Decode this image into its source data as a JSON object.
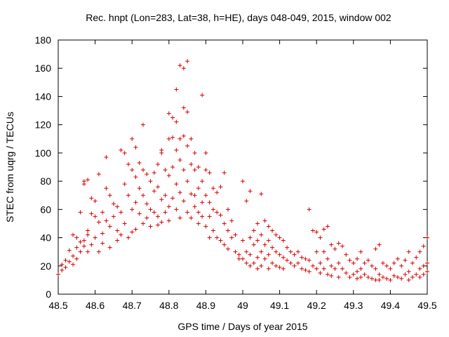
{
  "chart_data": {
    "type": "scatter",
    "title": "Rec. hnpt (Lon=283, Lat=38, h=HE), days 048-049, 2015, window 002",
    "xlabel": "GPS time / Days of year 2015",
    "ylabel": "STEC from uqrg / TECUs",
    "xlim": [
      48.5,
      49.5
    ],
    "ylim": [
      0,
      180
    ],
    "xticks": [
      "48.5",
      "48.6",
      "48.7",
      "48.8",
      "48.9",
      "49",
      "49.1",
      "49.2",
      "49.3",
      "49.4",
      "49.5"
    ],
    "yticks": [
      "0",
      "20",
      "40",
      "60",
      "80",
      "100",
      "120",
      "140",
      "160",
      "180"
    ],
    "marker": "+",
    "color": "#d40000",
    "series": [
      {
        "name": "STEC",
        "points": [
          [
            48.5,
            14
          ],
          [
            48.51,
            17
          ],
          [
            48.51,
            21
          ],
          [
            48.52,
            19
          ],
          [
            48.52,
            24
          ],
          [
            48.53,
            31
          ],
          [
            48.53,
            23
          ],
          [
            48.54,
            27
          ],
          [
            48.54,
            42
          ],
          [
            48.54,
            21
          ],
          [
            48.55,
            25
          ],
          [
            48.55,
            40
          ],
          [
            48.55,
            33
          ],
          [
            48.56,
            58
          ],
          [
            48.56,
            30
          ],
          [
            48.56,
            37
          ],
          [
            48.57,
            78
          ],
          [
            48.57,
            80
          ],
          [
            48.57,
            38
          ],
          [
            48.57,
            34
          ],
          [
            48.58,
            81
          ],
          [
            48.58,
            45
          ],
          [
            48.58,
            42
          ],
          [
            48.58,
            30
          ],
          [
            48.59,
            57
          ],
          [
            48.59,
            68
          ],
          [
            48.59,
            35
          ],
          [
            48.6,
            66
          ],
          [
            48.6,
            55
          ],
          [
            48.6,
            40
          ],
          [
            48.61,
            85
          ],
          [
            48.61,
            51
          ],
          [
            48.61,
            30
          ],
          [
            48.62,
            58
          ],
          [
            48.62,
            43
          ],
          [
            48.62,
            36
          ],
          [
            48.63,
            97
          ],
          [
            48.63,
            75
          ],
          [
            48.63,
            52
          ],
          [
            48.64,
            70
          ],
          [
            48.64,
            48
          ],
          [
            48.64,
            33
          ],
          [
            48.65,
            64
          ],
          [
            48.65,
            55
          ],
          [
            48.66,
            62
          ],
          [
            48.66,
            45
          ],
          [
            48.66,
            38
          ],
          [
            48.67,
            102
          ],
          [
            48.67,
            58
          ],
          [
            48.67,
            42
          ],
          [
            48.68,
            100
          ],
          [
            48.68,
            78
          ],
          [
            48.68,
            50
          ],
          [
            48.69,
            92
          ],
          [
            48.69,
            70
          ],
          [
            48.69,
            40
          ],
          [
            48.7,
            110
          ],
          [
            48.7,
            88
          ],
          [
            48.7,
            60
          ],
          [
            48.7,
            44
          ],
          [
            48.71,
            104
          ],
          [
            48.71,
            83
          ],
          [
            48.71,
            65
          ],
          [
            48.71,
            46
          ],
          [
            48.72,
            93
          ],
          [
            48.72,
            75
          ],
          [
            48.72,
            57
          ],
          [
            48.73,
            120
          ],
          [
            48.73,
            88
          ],
          [
            48.73,
            70
          ],
          [
            48.73,
            50
          ],
          [
            48.74,
            85
          ],
          [
            48.74,
            64
          ],
          [
            48.74,
            54
          ],
          [
            48.75,
            80
          ],
          [
            48.75,
            60
          ],
          [
            48.75,
            48
          ],
          [
            48.76,
            86
          ],
          [
            48.76,
            73
          ],
          [
            48.76,
            58
          ],
          [
            48.77,
            92
          ],
          [
            48.77,
            76
          ],
          [
            48.77,
            55
          ],
          [
            48.77,
            49
          ],
          [
            48.78,
            102
          ],
          [
            48.78,
            100
          ],
          [
            48.78,
            67
          ],
          [
            48.78,
            51
          ],
          [
            48.79,
            88
          ],
          [
            48.79,
            70
          ],
          [
            48.79,
            58
          ],
          [
            48.8,
            128
          ],
          [
            48.8,
            110
          ],
          [
            48.8,
            84
          ],
          [
            48.8,
            62
          ],
          [
            48.8,
            52
          ],
          [
            48.81,
            125
          ],
          [
            48.81,
            111
          ],
          [
            48.81,
            90
          ],
          [
            48.81,
            68
          ],
          [
            48.82,
            145
          ],
          [
            48.82,
            122
          ],
          [
            48.82,
            102
          ],
          [
            48.82,
            78
          ],
          [
            48.82,
            60
          ],
          [
            48.83,
            162
          ],
          [
            48.83,
            110
          ],
          [
            48.83,
            95
          ],
          [
            48.83,
            72
          ],
          [
            48.83,
            54
          ],
          [
            48.84,
            160
          ],
          [
            48.84,
            132
          ],
          [
            48.84,
            112
          ],
          [
            48.84,
            88
          ],
          [
            48.84,
            66
          ],
          [
            48.85,
            165
          ],
          [
            48.85,
            129
          ],
          [
            48.85,
            105
          ],
          [
            48.85,
            80
          ],
          [
            48.85,
            58
          ],
          [
            48.86,
            110
          ],
          [
            48.86,
            92
          ],
          [
            48.86,
            71
          ],
          [
            48.86,
            54
          ],
          [
            48.87,
            100
          ],
          [
            48.87,
            88
          ],
          [
            48.87,
            70
          ],
          [
            48.87,
            62
          ],
          [
            48.88,
            90
          ],
          [
            48.88,
            75
          ],
          [
            48.88,
            58
          ],
          [
            48.88,
            50
          ],
          [
            48.89,
            141
          ],
          [
            48.89,
            80
          ],
          [
            48.89,
            65
          ],
          [
            48.89,
            55
          ],
          [
            48.9,
            100
          ],
          [
            48.9,
            88
          ],
          [
            48.9,
            70
          ],
          [
            48.9,
            48
          ],
          [
            48.91,
            86
          ],
          [
            48.91,
            65
          ],
          [
            48.91,
            55
          ],
          [
            48.91,
            40
          ],
          [
            48.92,
            75
          ],
          [
            48.92,
            60
          ],
          [
            48.92,
            45
          ],
          [
            48.93,
            72
          ],
          [
            48.93,
            58
          ],
          [
            48.93,
            40
          ],
          [
            48.94,
            76
          ],
          [
            48.94,
            56
          ],
          [
            48.94,
            38
          ],
          [
            48.95,
            86
          ],
          [
            48.95,
            50
          ],
          [
            48.95,
            35
          ],
          [
            48.96,
            60
          ],
          [
            48.96,
            45
          ],
          [
            48.96,
            32
          ],
          [
            48.97,
            52
          ],
          [
            48.97,
            40
          ],
          [
            48.98,
            42
          ],
          [
            48.98,
            30
          ],
          [
            48.99,
            28
          ],
          [
            48.99,
            25
          ],
          [
            49.0,
            80
          ],
          [
            49.0,
            38
          ],
          [
            49.0,
            25
          ],
          [
            49.01,
            66
          ],
          [
            49.01,
            30
          ],
          [
            49.01,
            22
          ],
          [
            49.02,
            73
          ],
          [
            49.02,
            40
          ],
          [
            49.02,
            28
          ],
          [
            49.02,
            20
          ],
          [
            49.03,
            45
          ],
          [
            49.03,
            35
          ],
          [
            49.03,
            22
          ],
          [
            49.04,
            50
          ],
          [
            49.04,
            38
          ],
          [
            49.04,
            26
          ],
          [
            49.04,
            18
          ],
          [
            49.05,
            71
          ],
          [
            49.05,
            42
          ],
          [
            49.05,
            30
          ],
          [
            49.05,
            20
          ],
          [
            49.06,
            52
          ],
          [
            49.06,
            35
          ],
          [
            49.06,
            25
          ],
          [
            49.07,
            48
          ],
          [
            49.07,
            38
          ],
          [
            49.07,
            28
          ],
          [
            49.07,
            18
          ],
          [
            49.08,
            45
          ],
          [
            49.08,
            33
          ],
          [
            49.08,
            22
          ],
          [
            49.09,
            42
          ],
          [
            49.09,
            30
          ],
          [
            49.09,
            20
          ],
          [
            49.1,
            40
          ],
          [
            49.1,
            28
          ],
          [
            49.1,
            19
          ],
          [
            49.11,
            38
          ],
          [
            49.11,
            26
          ],
          [
            49.11,
            18
          ],
          [
            49.12,
            33
          ],
          [
            49.12,
            24
          ],
          [
            49.13,
            30
          ],
          [
            49.13,
            22
          ],
          [
            49.14,
            28
          ],
          [
            49.14,
            20
          ],
          [
            49.15,
            30
          ],
          [
            49.15,
            22
          ],
          [
            49.16,
            26
          ],
          [
            49.16,
            18
          ],
          [
            49.17,
            25
          ],
          [
            49.17,
            17
          ],
          [
            49.18,
            60
          ],
          [
            49.18,
            24
          ],
          [
            49.18,
            16
          ],
          [
            49.19,
            45
          ],
          [
            49.19,
            20
          ],
          [
            49.2,
            44
          ],
          [
            49.2,
            30
          ],
          [
            49.2,
            18
          ],
          [
            49.21,
            40
          ],
          [
            49.21,
            22
          ],
          [
            49.21,
            15
          ],
          [
            49.22,
            46
          ],
          [
            49.22,
            30
          ],
          [
            49.22,
            18
          ],
          [
            49.23,
            48
          ],
          [
            49.23,
            25
          ],
          [
            49.23,
            14
          ],
          [
            49.24,
            35
          ],
          [
            49.24,
            20
          ],
          [
            49.24,
            13
          ],
          [
            49.25,
            32
          ],
          [
            49.25,
            18
          ],
          [
            49.26,
            36
          ],
          [
            49.26,
            22
          ],
          [
            49.26,
            12
          ],
          [
            49.27,
            34
          ],
          [
            49.27,
            18
          ],
          [
            49.28,
            28
          ],
          [
            49.28,
            15
          ],
          [
            49.29,
            24
          ],
          [
            49.29,
            12
          ],
          [
            49.3,
            22
          ],
          [
            49.3,
            14
          ],
          [
            49.31,
            25
          ],
          [
            49.31,
            16
          ],
          [
            49.31,
            11
          ],
          [
            49.32,
            30
          ],
          [
            49.32,
            18
          ],
          [
            49.32,
            12
          ],
          [
            49.33,
            22
          ],
          [
            49.33,
            14
          ],
          [
            49.34,
            24
          ],
          [
            49.34,
            12
          ],
          [
            49.35,
            20
          ],
          [
            49.35,
            11
          ],
          [
            49.36,
            32
          ],
          [
            49.36,
            18
          ],
          [
            49.36,
            10
          ],
          [
            49.37,
            35
          ],
          [
            49.37,
            14
          ],
          [
            49.37,
            10
          ],
          [
            49.38,
            22
          ],
          [
            49.38,
            12
          ],
          [
            49.39,
            20
          ],
          [
            49.39,
            11
          ],
          [
            49.4,
            18
          ],
          [
            49.4,
            10
          ],
          [
            49.41,
            22
          ],
          [
            49.41,
            13
          ],
          [
            49.42,
            25
          ],
          [
            49.42,
            12
          ],
          [
            49.43,
            20
          ],
          [
            49.43,
            11
          ],
          [
            49.44,
            24
          ],
          [
            49.44,
            14
          ],
          [
            49.45,
            30
          ],
          [
            49.45,
            16
          ],
          [
            49.45,
            10
          ],
          [
            49.46,
            22
          ],
          [
            49.46,
            12
          ],
          [
            49.47,
            26
          ],
          [
            49.47,
            14
          ],
          [
            49.48,
            30
          ],
          [
            49.48,
            18
          ],
          [
            49.48,
            12
          ],
          [
            49.49,
            34
          ],
          [
            49.49,
            20
          ],
          [
            49.49,
            14
          ],
          [
            49.5,
            40
          ],
          [
            49.5,
            22
          ],
          [
            49.5,
            16
          ]
        ]
      }
    ]
  }
}
